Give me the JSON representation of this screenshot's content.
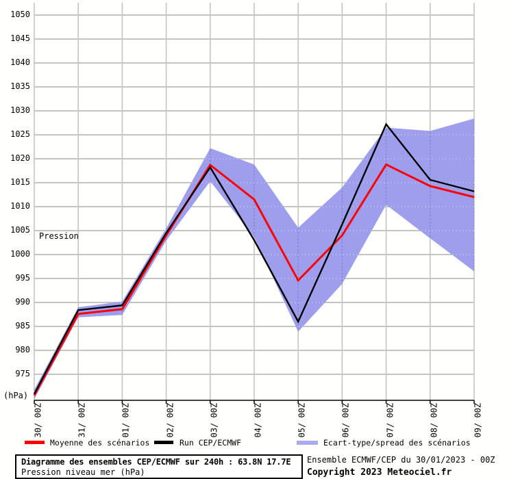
{
  "chart_data": {
    "type": "line",
    "title": "Diagramme des ensembles CEP/ECMWF sur 240h : 63.8N 17.7E",
    "subtitle": "Pression niveau mer (hPa)",
    "y_axis_label": "Pression",
    "y_axis_unit": "(hPa)",
    "grid": true,
    "legend_position": "bottom",
    "x_labels": [
      "30/ 00Z",
      "31/ 00Z",
      "01/ 00Z",
      "02/ 00Z",
      "03/ 00Z",
      "04/ 00Z",
      "05/ 00Z",
      "06/ 00Z",
      "07/ 00Z",
      "08/ 00Z",
      "09/ 00Z"
    ],
    "y_ticks": [
      975,
      980,
      985,
      990,
      995,
      1000,
      1005,
      1010,
      1015,
      1020,
      1025,
      1030,
      1035,
      1040,
      1045,
      1050
    ],
    "ylim": [
      969.6,
      1052.6
    ],
    "series": [
      {
        "name": "Moyenne des scénarios",
        "color": "#ff0000",
        "values": [
          970.6,
          987.6,
          988.6,
          1004.0,
          1018.7,
          1011.5,
          994.6,
          1004.0,
          1018.8,
          1014.3,
          1012.0
        ]
      },
      {
        "name": "Run CEP/ECMWF",
        "color": "#000000",
        "values": [
          970.9,
          988.4,
          989.4,
          1004.5,
          1018.2,
          1003.0,
          986.0,
          1006.3,
          1027.2,
          1015.6,
          1013.2
        ]
      }
    ],
    "band": {
      "name": "Ecart-type/spread des scénarios",
      "color": "#9696ea",
      "legend_color": "#aaaaee",
      "upper": [
        971.8,
        989.0,
        990.2,
        1005.5,
        1022.2,
        1018.8,
        1005.6,
        1014.0,
        1026.5,
        1025.8,
        1028.4
      ],
      "lower": [
        969.8,
        986.9,
        987.4,
        1002.9,
        1015.3,
        1003.6,
        983.9,
        993.9,
        1010.4,
        1003.4,
        996.5
      ]
    },
    "grid_color": "#c4c4c4"
  },
  "footer": {
    "info": "Ensemble ECMWF/CEP du 30/01/2023 - 00Z",
    "copyright": "Copyright 2023 Meteociel.fr"
  }
}
